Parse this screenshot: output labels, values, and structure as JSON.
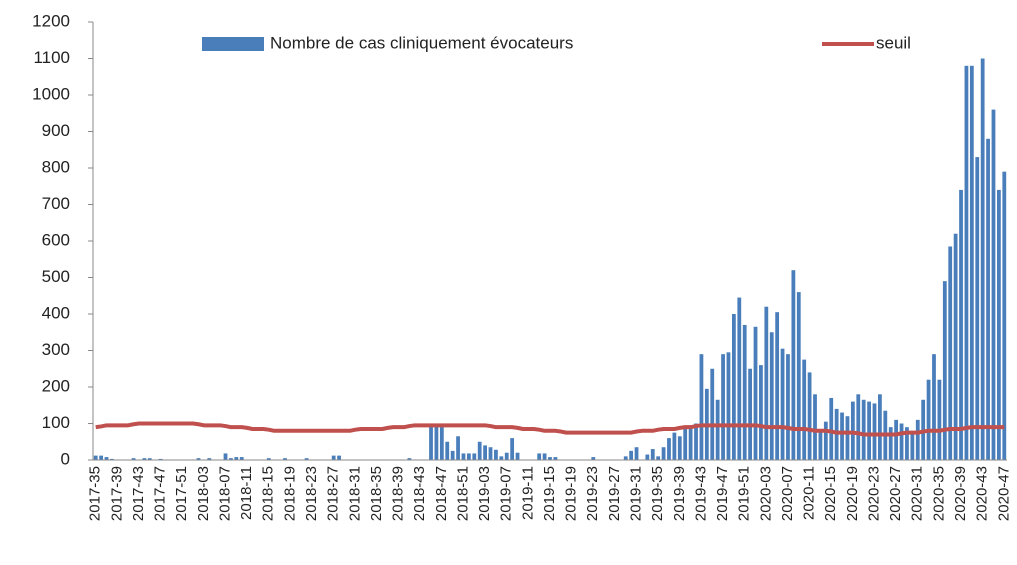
{
  "chart_data": {
    "type": "bar",
    "categories": [
      "2017-35",
      null,
      null,
      null,
      "2017-39",
      null,
      null,
      null,
      "2017-43",
      null,
      null,
      null,
      "2017-47",
      null,
      null,
      null,
      "2017-51",
      null,
      null,
      null,
      "2018-03",
      null,
      null,
      null,
      "2018-07",
      null,
      null,
      null,
      "2018-11",
      null,
      null,
      null,
      "2018-15",
      null,
      null,
      null,
      "2018-19",
      null,
      null,
      null,
      "2018-23",
      null,
      null,
      null,
      "2018-27",
      null,
      null,
      null,
      "2018-31",
      null,
      null,
      null,
      "2018-35",
      null,
      null,
      null,
      "2018-39",
      null,
      null,
      null,
      "2018-43",
      null,
      null,
      null,
      "2018-47",
      null,
      null,
      null,
      "2018-51",
      null,
      null,
      null,
      "2019-03",
      null,
      null,
      null,
      "2019-07",
      null,
      null,
      null,
      "2019-11",
      null,
      null,
      null,
      "2019-15",
      null,
      null,
      null,
      "2019-19",
      null,
      null,
      null,
      "2019-23",
      null,
      null,
      null,
      "2019-27",
      null,
      null,
      null,
      "2019-31",
      null,
      null,
      null,
      "2019-35",
      null,
      null,
      null,
      "2019-39",
      null,
      null,
      null,
      "2019-43",
      null,
      null,
      null,
      "2019-47",
      null,
      null,
      null,
      "2019-51",
      null,
      null,
      null,
      "2020-03",
      null,
      null,
      null,
      "2020-07",
      null,
      null,
      null,
      "2020-11",
      null,
      null,
      null,
      "2020-15",
      null,
      null,
      null,
      "2020-19",
      null,
      null,
      null,
      "2020-23",
      null,
      null,
      null,
      "2020-27",
      null,
      null,
      null,
      "2020-31",
      null,
      null,
      null,
      "2020-35",
      null,
      null,
      null,
      "2020-39",
      null,
      null,
      null,
      "2020-43",
      null,
      null,
      null,
      "2020-47"
    ],
    "series": [
      {
        "name": "Nombre de cas cliniquement évocateurs",
        "type": "bar",
        "color": "#4a7ebb",
        "values": [
          12,
          12,
          8,
          3,
          0,
          0,
          0,
          5,
          0,
          5,
          5,
          0,
          3,
          0,
          0,
          0,
          0,
          0,
          0,
          5,
          0,
          5,
          0,
          0,
          18,
          5,
          8,
          8,
          0,
          0,
          0,
          0,
          5,
          0,
          0,
          5,
          0,
          0,
          0,
          5,
          0,
          0,
          0,
          0,
          12,
          12,
          0,
          0,
          0,
          0,
          0,
          0,
          0,
          0,
          0,
          0,
          0,
          0,
          5,
          0,
          0,
          0,
          95,
          100,
          95,
          50,
          25,
          65,
          18,
          18,
          18,
          50,
          40,
          35,
          28,
          10,
          20,
          60,
          20,
          0,
          0,
          0,
          18,
          18,
          8,
          8,
          0,
          0,
          0,
          0,
          0,
          0,
          8,
          0,
          0,
          0,
          0,
          0,
          10,
          25,
          35,
          0,
          15,
          30,
          10,
          35,
          60,
          75,
          65,
          90,
          95,
          100,
          290,
          195,
          250,
          165,
          290,
          295,
          400,
          445,
          370,
          250,
          365,
          260,
          420,
          350,
          405,
          305,
          290,
          520,
          460,
          275,
          240,
          180,
          80,
          105,
          170,
          140,
          130,
          120,
          160,
          180,
          165,
          160,
          155,
          180,
          135,
          90,
          110,
          100,
          90,
          80,
          110,
          165,
          220,
          290,
          220,
          490,
          585,
          620,
          740,
          1080,
          1080,
          830,
          1100,
          880,
          960,
          740,
          790
        ]
      },
      {
        "name": "seuil",
        "type": "line",
        "color": "#c0504d",
        "values": [
          90,
          92,
          95,
          95,
          95,
          95,
          95,
          98,
          100,
          100,
          100,
          100,
          100,
          100,
          100,
          100,
          100,
          100,
          100,
          98,
          95,
          95,
          95,
          95,
          93,
          90,
          90,
          90,
          88,
          85,
          85,
          85,
          83,
          80,
          80,
          80,
          80,
          80,
          80,
          80,
          80,
          80,
          80,
          80,
          80,
          80,
          80,
          80,
          83,
          85,
          85,
          85,
          85,
          85,
          88,
          90,
          90,
          90,
          93,
          95,
          95,
          95,
          95,
          95,
          95,
          95,
          95,
          95,
          95,
          95,
          95,
          95,
          95,
          93,
          90,
          90,
          90,
          90,
          88,
          85,
          85,
          85,
          83,
          80,
          80,
          80,
          78,
          75,
          75,
          75,
          75,
          75,
          75,
          75,
          75,
          75,
          75,
          75,
          75,
          75,
          78,
          80,
          80,
          80,
          83,
          85,
          85,
          85,
          88,
          90,
          90,
          93,
          95,
          95,
          95,
          95,
          95,
          95,
          95,
          95,
          95,
          95,
          95,
          93,
          90,
          90,
          90,
          90,
          88,
          85,
          85,
          85,
          83,
          80,
          80,
          80,
          78,
          75,
          75,
          75,
          75,
          73,
          70,
          70,
          70,
          70,
          70,
          70,
          70,
          73,
          75,
          75,
          75,
          78,
          80,
          80,
          80,
          83,
          85,
          85,
          85,
          88,
          90,
          90,
          90,
          90,
          90,
          90,
          90
        ]
      }
    ],
    "ylim": [
      0,
      1200
    ],
    "yticks": [
      0,
      100,
      200,
      300,
      400,
      500,
      600,
      700,
      800,
      900,
      1000,
      1100,
      1200
    ],
    "grid": false,
    "legend": "top"
  }
}
